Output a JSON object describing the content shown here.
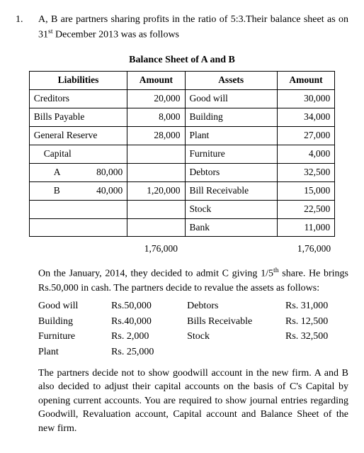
{
  "question": {
    "number": "1.",
    "intro": "A, B are partners sharing profits in the ratio of 5:3.Their balance sheet as on 31ˢᵗ December 2013 was as follows"
  },
  "sheet": {
    "title": "Balance Sheet of A and B",
    "headers": {
      "liabilities": "Liabilities",
      "amount1": "Amount",
      "assets": "Assets",
      "amount2": "Amount"
    },
    "rows": [
      {
        "l": "Creditors",
        "la": "20,000",
        "a": "Good will",
        "aa": "30,000"
      },
      {
        "l": "Bills Payable",
        "la": "8,000",
        "a": "Building",
        "aa": "34,000"
      },
      {
        "l": "General Reserve",
        "la": "28,000",
        "a": "Plant",
        "aa": "27,000"
      },
      {
        "l_html": "<div class=\"indent1\">Capital</div>",
        "la": "",
        "a": "Furniture",
        "aa": "4,000"
      },
      {
        "l_html": "<div class=\"indent2\"><span>A</span><span>80,000</span></div>",
        "la": "",
        "a": "Debtors",
        "aa": "32,500"
      },
      {
        "l_html": "<div class=\"indent2\"><span>B</span><span>40,000</span></div>",
        "la": "1,20,000",
        "a": "Bill Receivable",
        "aa": "15,000"
      },
      {
        "l": "",
        "la": "",
        "a": "Stock",
        "aa": "22,500"
      },
      {
        "l": "",
        "la": "",
        "a": "Bank",
        "aa": "11,000"
      }
    ],
    "totals": {
      "left": "1,76,000",
      "right": "1,76,000"
    }
  },
  "para1": "On the January, 2014, they decided to admit C giving 1/5ᵗʰ share. He brings Rs.50,000 in cash. The partners decide to revalue the assets as follows:",
  "reval": [
    {
      "n1": "Good will",
      "v1": "Rs.50,000",
      "n2": "Debtors",
      "v2": "Rs. 31,000"
    },
    {
      "n1": "Building",
      "v1": "Rs.40,000",
      "n2": "Bills Receivable",
      "v2": "Rs. 12,500"
    },
    {
      "n1": "Furniture",
      "v1": "Rs. 2,000",
      "n2": "Stock",
      "v2": "Rs. 32,500"
    },
    {
      "n1": "Plant",
      "v1": "Rs. 25,000",
      "n2": "",
      "v2": ""
    }
  ],
  "para2": "The partners decide not to show goodwill account in the new firm. A and B also decided to adjust their capital accounts on the basis of C's Capital by opening current accounts. You are required to show journal entries regarding Goodwill, Revaluation account, Capital account and Balance Sheet of the new firm."
}
